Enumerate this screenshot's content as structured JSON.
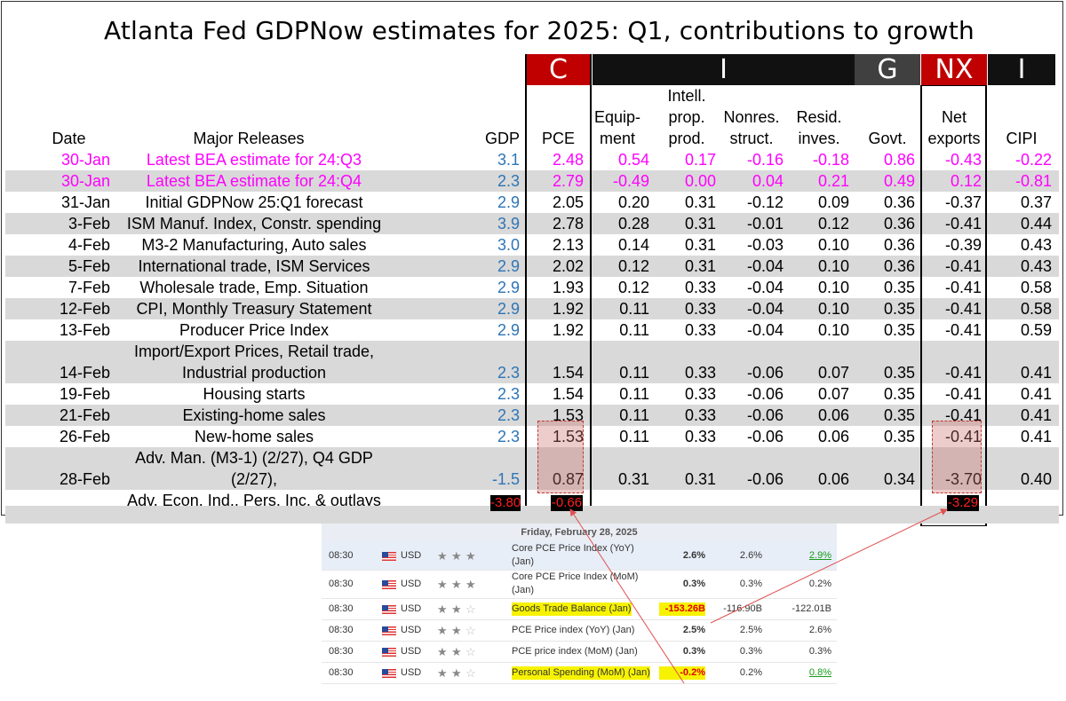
{
  "title": "Atlanta Fed GDPNow estimates for 2025: Q1, contributions to growth",
  "group_headers": [
    {
      "label": "C",
      "color": "#c00000"
    },
    {
      "label": "I",
      "color": "#111111"
    },
    {
      "label": "G",
      "color": "#404040"
    },
    {
      "label": "NX",
      "color": "#c00000"
    },
    {
      "label": "I",
      "color": "#111111"
    }
  ],
  "columns": {
    "date": "Date",
    "release": "Major Releases",
    "gdp": "GDP",
    "pce": "PCE",
    "equip": [
      "Equip-",
      "ment"
    ],
    "ipp": [
      "Intell.",
      "prop.",
      "prod."
    ],
    "nonres": [
      "Nonres.",
      "struct."
    ],
    "resid": [
      "Resid.",
      "inves."
    ],
    "govt": "Govt.",
    "nx": [
      "Net",
      "exports"
    ],
    "cipi": "CIPI"
  },
  "chart_data": {
    "type": "table",
    "title": "Atlanta Fed GDPNow estimates for 2025: Q1, contributions to growth",
    "headers": [
      "Date",
      "Major Releases",
      "GDP",
      "PCE",
      "Equipment",
      "Intell. prop. prod.",
      "Nonres. struct.",
      "Resid. inves.",
      "Govt.",
      "Net exports",
      "CIPI"
    ],
    "rows": [
      {
        "date": "30-Jan",
        "release": [
          "Latest BEA estimate for 24:Q3"
        ],
        "gdp": "3.1",
        "pce": "2.48",
        "equip": "0.54",
        "ipp": "0.17",
        "nonres": "-0.16",
        "resid": "-0.18",
        "govt": "0.86",
        "nx": "-0.43",
        "cipi": "-0.22",
        "magenta": true
      },
      {
        "date": "30-Jan",
        "release": [
          "Latest BEA estimate for 24:Q4"
        ],
        "gdp": "2.3",
        "pce": "2.79",
        "equip": "-0.49",
        "ipp": "0.00",
        "nonres": "0.04",
        "resid": "0.21",
        "govt": "0.49",
        "nx": "0.12",
        "cipi": "-0.81",
        "magenta": true
      },
      {
        "date": "31-Jan",
        "release": [
          "Initial GDPNow 25:Q1 forecast"
        ],
        "gdp": "2.9",
        "pce": "2.05",
        "equip": "0.20",
        "ipp": "0.31",
        "nonres": "-0.12",
        "resid": "0.09",
        "govt": "0.36",
        "nx": "-0.37",
        "cipi": "0.37"
      },
      {
        "date": "3-Feb",
        "release": [
          "ISM Manuf. Index, Constr. spending"
        ],
        "gdp": "3.9",
        "pce": "2.78",
        "equip": "0.28",
        "ipp": "0.31",
        "nonres": "-0.01",
        "resid": "0.12",
        "govt": "0.36",
        "nx": "-0.41",
        "cipi": "0.44"
      },
      {
        "date": "4-Feb",
        "release": [
          "M3-2 Manufacturing, Auto sales"
        ],
        "gdp": "3.0",
        "pce": "2.13",
        "equip": "0.14",
        "ipp": "0.31",
        "nonres": "-0.03",
        "resid": "0.10",
        "govt": "0.36",
        "nx": "-0.39",
        "cipi": "0.43"
      },
      {
        "date": "5-Feb",
        "release": [
          "International trade, ISM Services"
        ],
        "gdp": "2.9",
        "pce": "2.02",
        "equip": "0.12",
        "ipp": "0.31",
        "nonres": "-0.04",
        "resid": "0.10",
        "govt": "0.36",
        "nx": "-0.41",
        "cipi": "0.43"
      },
      {
        "date": "7-Feb",
        "release": [
          "Wholesale trade, Emp. Situation"
        ],
        "gdp": "2.9",
        "pce": "1.93",
        "equip": "0.12",
        "ipp": "0.33",
        "nonres": "-0.04",
        "resid": "0.10",
        "govt": "0.35",
        "nx": "-0.41",
        "cipi": "0.58"
      },
      {
        "date": "12-Feb",
        "release": [
          "CPI, Monthly Treasury Statement"
        ],
        "gdp": "2.9",
        "pce": "1.92",
        "equip": "0.11",
        "ipp": "0.33",
        "nonres": "-0.04",
        "resid": "0.10",
        "govt": "0.35",
        "nx": "-0.41",
        "cipi": "0.58"
      },
      {
        "date": "13-Feb",
        "release": [
          "Producer Price Index"
        ],
        "gdp": "2.9",
        "pce": "1.92",
        "equip": "0.11",
        "ipp": "0.33",
        "nonres": "-0.04",
        "resid": "0.10",
        "govt": "0.35",
        "nx": "-0.41",
        "cipi": "0.59"
      },
      {
        "date": "14-Feb",
        "release": [
          "Import/Export Prices, Retail trade,",
          "Industrial production"
        ],
        "gdp": "2.3",
        "pce": "1.54",
        "equip": "0.11",
        "ipp": "0.33",
        "nonres": "-0.06",
        "resid": "0.07",
        "govt": "0.35",
        "nx": "-0.41",
        "cipi": "0.41"
      },
      {
        "date": "19-Feb",
        "release": [
          "Housing starts"
        ],
        "gdp": "2.3",
        "pce": "1.54",
        "equip": "0.11",
        "ipp": "0.33",
        "nonres": "-0.06",
        "resid": "0.07",
        "govt": "0.35",
        "nx": "-0.41",
        "cipi": "0.41"
      },
      {
        "date": "21-Feb",
        "release": [
          "Existing-home sales"
        ],
        "gdp": "2.3",
        "pce": "1.53",
        "equip": "0.11",
        "ipp": "0.33",
        "nonres": "-0.06",
        "resid": "0.06",
        "govt": "0.35",
        "nx": "-0.41",
        "cipi": "0.41"
      },
      {
        "date": "26-Feb",
        "release": [
          "New-home sales"
        ],
        "gdp": "2.3",
        "pce": "1.53",
        "equip": "0.11",
        "ipp": "0.33",
        "nonres": "-0.06",
        "resid": "0.06",
        "govt": "0.35",
        "nx": "-0.41",
        "cipi": "0.41"
      },
      {
        "date": "28-Feb",
        "release": [
          "Adv. Man. (M3-1) (2/27), Q4 GDP (2/27),",
          "Adv. Econ. Ind., Pers. Inc. & outlays"
        ],
        "gdp": "-1.5",
        "pce": "0.87",
        "equip": "0.31",
        "ipp": "0.31",
        "nonres": "-0.06",
        "resid": "0.06",
        "govt": "0.34",
        "nx": "-3.70",
        "cipi": "0.40"
      }
    ],
    "changes": {
      "gdp": "-3.80",
      "pce": "-0.66",
      "nx": "-3.29"
    }
  },
  "calendar": {
    "date_header": "Friday, February 28, 2025",
    "events": [
      {
        "time": "08:30",
        "currency": "USD",
        "stars": 3,
        "event": [
          "Core PCE Price Index (YoY)",
          "(Jan)"
        ],
        "actual": "2.6%",
        "forecast": "2.6%",
        "previous": "2.9%",
        "prev_green": true,
        "selected": true
      },
      {
        "time": "08:30",
        "currency": "USD",
        "stars": 3,
        "event": [
          "Core PCE Price Index (MoM)",
          "(Jan)"
        ],
        "actual": "0.3%",
        "forecast": "0.3%",
        "previous": "0.2%"
      },
      {
        "time": "08:30",
        "currency": "USD",
        "stars": 2,
        "event": [
          "Goods Trade Balance (Jan)"
        ],
        "actual": "-153.26B",
        "forecast": "-116.90B",
        "previous": "-122.01B",
        "highlight": true
      },
      {
        "time": "08:30",
        "currency": "USD",
        "stars": 2,
        "event": [
          "PCE Price index (YoY) (Jan)"
        ],
        "actual": "2.5%",
        "forecast": "2.5%",
        "previous": "2.6%"
      },
      {
        "time": "08:30",
        "currency": "USD",
        "stars": 2,
        "event": [
          "PCE price index (MoM) (Jan)"
        ],
        "actual": "0.3%",
        "forecast": "0.3%",
        "previous": "0.3%"
      },
      {
        "time": "08:30",
        "currency": "USD",
        "stars": 2,
        "event": [
          "Personal Spending (MoM) (Jan)"
        ],
        "actual": "-0.2%",
        "forecast": "0.2%",
        "previous": "0.8%",
        "prev_green": true,
        "highlight": true
      }
    ]
  }
}
